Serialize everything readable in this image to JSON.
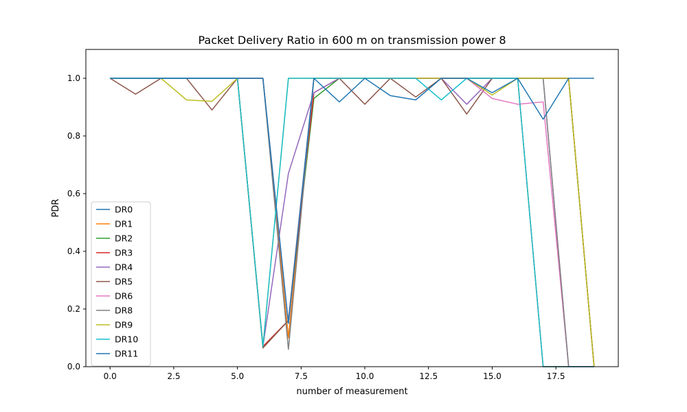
{
  "chart_data": {
    "type": "line",
    "title": "Packet Delivery Ratio in 600 m on transmission power 8",
    "xlabel": "number of measurement",
    "ylabel": "PDR",
    "xlim": [
      -0.95,
      19.95
    ],
    "ylim": [
      0.0,
      1.1
    ],
    "xticks": [
      0.0,
      2.5,
      5.0,
      7.5,
      10.0,
      12.5,
      15.0,
      17.5
    ],
    "xtick_labels": [
      "0.0",
      "2.5",
      "5.0",
      "7.5",
      "10.0",
      "12.5",
      "15.0",
      "17.5"
    ],
    "yticks": [
      0.0,
      0.2,
      0.4,
      0.6,
      0.8,
      1.0
    ],
    "ytick_labels": [
      "0.0",
      "0.2",
      "0.4",
      "0.6",
      "0.8",
      "1.0"
    ],
    "grid": false,
    "legend_position": "lower-left",
    "x": [
      0,
      1,
      2,
      3,
      4,
      5,
      6,
      7,
      8,
      9,
      10,
      11,
      12,
      13,
      14,
      15,
      16,
      17,
      18,
      19
    ],
    "series": [
      {
        "name": "DR0",
        "color": "#1f77b4",
        "values": [
          1,
          1,
          1,
          1,
          1,
          1,
          1,
          0.1,
          1,
          1,
          1,
          1,
          1,
          1,
          1,
          1,
          1,
          0,
          0,
          0
        ]
      },
      {
        "name": "DR1",
        "color": "#ff7f0e",
        "values": [
          1,
          1,
          1,
          1,
          1,
          1,
          1,
          0.1,
          1,
          1,
          1,
          1,
          1,
          1,
          1,
          1,
          1,
          0,
          0,
          0
        ]
      },
      {
        "name": "DR2",
        "color": "#2ca02c",
        "values": [
          1,
          1,
          1,
          1,
          1,
          1,
          0.07,
          0.16,
          0.93,
          1,
          1,
          1,
          1,
          1,
          1,
          1,
          1,
          1,
          1,
          0
        ]
      },
      {
        "name": "DR3",
        "color": "#d62728",
        "values": [
          1,
          1,
          1,
          1,
          1,
          1,
          0.07,
          0.16,
          0.95,
          1,
          1,
          1,
          1,
          1,
          1,
          1,
          1,
          1,
          1,
          0
        ]
      },
      {
        "name": "DR4",
        "color": "#9467bd",
        "values": [
          1,
          1,
          1,
          1,
          1,
          1,
          0.07,
          0.67,
          0.95,
          1,
          1,
          1,
          1,
          1,
          0.91,
          1,
          1,
          1,
          0,
          0
        ]
      },
      {
        "name": "DR5",
        "color": "#8c564b",
        "values": [
          1,
          0.945,
          1,
          1,
          0.89,
          1,
          0.065,
          0.16,
          1,
          1,
          0.91,
          1,
          0.935,
          1,
          0.876,
          1,
          1,
          1,
          1,
          0
        ]
      },
      {
        "name": "DR6",
        "color": "#e377c2",
        "values": [
          1,
          1,
          1,
          1,
          1,
          1,
          1,
          0.15,
          1,
          1,
          1,
          1,
          1,
          1,
          1,
          0.93,
          0.91,
          0.918,
          0,
          0
        ]
      },
      {
        "name": "DR8",
        "color": "#7f7f7f",
        "values": [
          1,
          1,
          1,
          1,
          1,
          1,
          1,
          0.06,
          1,
          1,
          1,
          1,
          1,
          1,
          1,
          1,
          1,
          1,
          0,
          0
        ]
      },
      {
        "name": "DR9",
        "color": "#bcbd22",
        "values": [
          1,
          1,
          1,
          0.925,
          0.92,
          1,
          0.07,
          1,
          1,
          1,
          1,
          1,
          1,
          1,
          1,
          0.942,
          1,
          1,
          1,
          0
        ]
      },
      {
        "name": "DR10",
        "color": "#17becf",
        "values": [
          1,
          1,
          1,
          1,
          1,
          1,
          0.07,
          1,
          1,
          1,
          1,
          1,
          1,
          0.925,
          1,
          1,
          1,
          0,
          0,
          0
        ]
      },
      {
        "name": "DR11",
        "color": "#1f77b4",
        "values": [
          1,
          1,
          1,
          1,
          1,
          1,
          1,
          0.15,
          1,
          0.918,
          1,
          0.94,
          0.925,
          1,
          1,
          0.95,
          1,
          0.858,
          1,
          1
        ]
      }
    ]
  }
}
